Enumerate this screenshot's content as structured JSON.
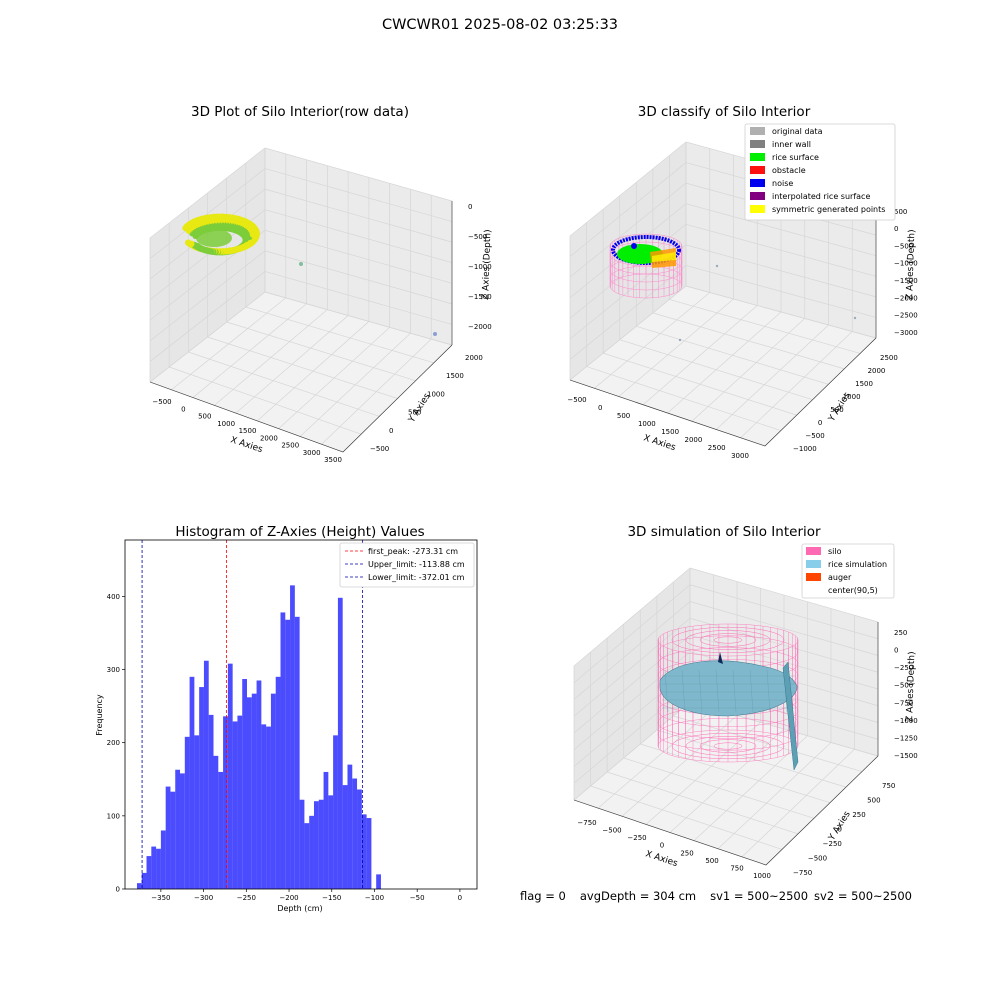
{
  "suptitle": "CWCWR01 2025-08-02 03:25:33",
  "chart_data": [
    {
      "type": "scatter",
      "title": "3D Plot of Silo Interior(row data)",
      "xlabel": "X Axies",
      "ylabel": "Y Axies",
      "zlabel": "Z Axies (Depth)",
      "x_ticks": [
        "−500",
        "0",
        "500",
        "1000",
        "1500",
        "2000",
        "2500",
        "3000",
        "3500"
      ],
      "y_ticks": [
        "−500",
        "0",
        "500",
        "1000",
        "1500",
        "2000"
      ],
      "z_ticks": [
        "−2000",
        "−1500",
        "−1000",
        "−500",
        "0"
      ],
      "grid": true,
      "colors": {
        "point_low": "#7ccd3a",
        "point_high": "#e8e812",
        "outlier": "#7fbfa0"
      }
    },
    {
      "type": "scatter",
      "title": "3D classify of Silo Interior",
      "xlabel": "X Axies",
      "ylabel": "Y Axies",
      "zlabel": "Z Axies (Depth)",
      "x_ticks": [
        "−500",
        "0",
        "500",
        "1000",
        "1500",
        "2000",
        "2500",
        "3000"
      ],
      "y_ticks": [
        "−1000",
        "−500",
        "0",
        "500",
        "1000",
        "1500",
        "2000",
        "2500"
      ],
      "z_ticks": [
        "−3000",
        "−2500",
        "−2000",
        "−1500",
        "−1000",
        "−500",
        "0"
      ],
      "z_extra_tick": "500",
      "grid": true,
      "legend_placement": "top-right",
      "legend": [
        {
          "label": "original data",
          "color": "#b0b0b0"
        },
        {
          "label": "inner wall",
          "color": "#808080"
        },
        {
          "label": "rice surface",
          "color": "#00ee00"
        },
        {
          "label": "obstacle",
          "color": "#ff1010"
        },
        {
          "label": "noise",
          "color": "#0000ee"
        },
        {
          "label": "interpolated rice surface",
          "color": "#800080"
        },
        {
          "label": "symmetric generated points",
          "color": "#ffff00"
        }
      ]
    },
    {
      "type": "bar",
      "title": "Histogram of Z-Axies (Height) Values",
      "xlabel": "Depth (cm)",
      "ylabel": "Frequency",
      "xlim": [
        -392,
        20
      ],
      "ylim": [
        0,
        477
      ],
      "x_ticks": [
        -350,
        -300,
        -250,
        -200,
        -150,
        -100,
        -50,
        0
      ],
      "x_tick_labels": [
        "−350",
        "−300",
        "−250",
        "−200",
        "−150",
        "−100",
        "−50",
        "0"
      ],
      "y_ticks": [
        0,
        100,
        200,
        300,
        400
      ],
      "bin_start": -378,
      "bin_width": 5.6,
      "values": [
        8,
        22,
        45,
        58,
        55,
        80,
        140,
        133,
        163,
        158,
        208,
        290,
        210,
        276,
        312,
        238,
        182,
        160,
        236,
        308,
        229,
        237,
        287,
        262,
        267,
        285,
        225,
        222,
        267,
        290,
        378,
        368,
        415,
        372,
        122,
        90,
        100,
        120,
        122,
        160,
        128,
        210,
        398,
        142,
        170,
        151,
        136,
        102,
        97,
        0,
        20
      ],
      "bar_color": "#0000ff",
      "lines": [
        {
          "label": "first_peak: -273.31 cm",
          "x": -273.31,
          "color": "#ff0000"
        },
        {
          "label": "Upper_limit: -113.88 cm",
          "x": -113.88,
          "color": "#0000aa"
        },
        {
          "label": "Lower_limit: -372.01 cm",
          "x": -372.01,
          "color": "#0000aa"
        }
      ],
      "legend_placement": "top-right"
    },
    {
      "type": "scatter",
      "title": "3D simulation of Silo Interior",
      "xlabel": "X Axies",
      "ylabel": "Y Axies",
      "zlabel": "Z Axies (Depth)",
      "x_ticks": [
        "−750",
        "−500",
        "−250",
        "0",
        "250",
        "500",
        "750",
        "1000"
      ],
      "y_ticks": [
        "−750",
        "−500",
        "−250",
        "0",
        "250",
        "500",
        "750"
      ],
      "z_ticks": [
        "−1500",
        "−1250",
        "−1000",
        "−750",
        "−500",
        "−250",
        "0",
        "250"
      ],
      "grid": true,
      "legend_placement": "top-right",
      "legend": [
        {
          "label": "silo",
          "color": "#ff69b4"
        },
        {
          "label": "rice simulation",
          "color": "#87ceeb"
        },
        {
          "label": "auger",
          "color": "#ff4500"
        },
        {
          "label": "center(90,5)",
          "color": "#ffffff"
        }
      ]
    }
  ],
  "footer": {
    "flag": "flag = 0",
    "avg": "avgDepth = 304 cm",
    "sv1": "sv1 = 500~2500",
    "sv2": "sv2 = 500~2500"
  }
}
